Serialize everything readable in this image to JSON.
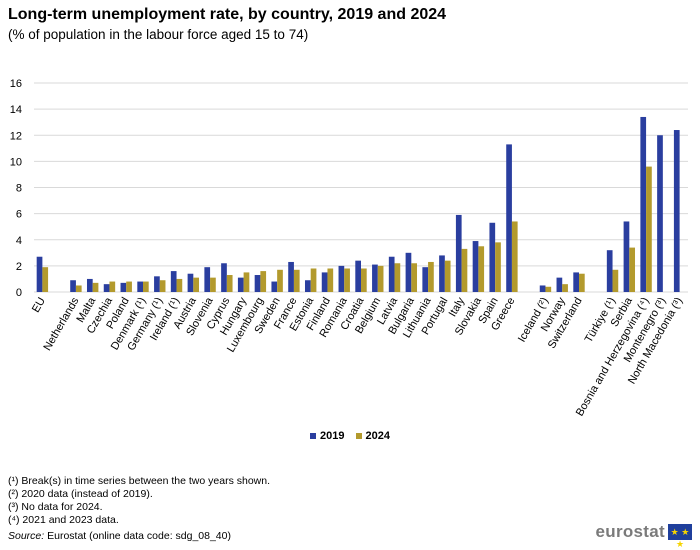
{
  "title": "Long-term unemployment rate, by country, 2019 and 2024",
  "subtitle": "(% of population in the labour force aged 15 to 74)",
  "colors": {
    "2019": "#2a3e9f",
    "2024": "#b39a2d",
    "grid": "#d9d9d9"
  },
  "chart_data": {
    "type": "bar",
    "ylim": [
      0,
      16
    ],
    "yticks": [
      0,
      2,
      4,
      6,
      8,
      10,
      12,
      14,
      16
    ],
    "grid": true,
    "legend_position": "bottom",
    "categories": [
      "EU",
      "Netherlands",
      "Malta",
      "Czechia",
      "Poland",
      "Denmark (¹)",
      "Germany (¹)",
      "Ireland (¹)",
      "Austria",
      "Slovenia",
      "Cyprus",
      "Hungary",
      "Luxembourg",
      "Sweden",
      "France",
      "Estonia",
      "Finland",
      "Romania",
      "Croatia",
      "Belgium",
      "Latvia",
      "Bulgaria",
      "Lithuania",
      "Portugal",
      "Italy",
      "Slovakia",
      "Spain",
      "Greece",
      "Iceland (²)",
      "Norway",
      "Switzerland",
      "Türkiye (¹)",
      "Serbia",
      "Bosnia and Herzegovina (⁴)",
      "Montenegro (³)",
      "North Macedonia (³)"
    ],
    "groups": [
      1,
      27,
      3,
      5
    ],
    "series": [
      {
        "name": "2019",
        "values": [
          2.7,
          0.9,
          1.0,
          0.6,
          0.7,
          0.8,
          1.2,
          1.6,
          1.4,
          1.9,
          2.2,
          1.1,
          1.3,
          0.8,
          2.3,
          0.9,
          1.5,
          2.0,
          2.4,
          2.1,
          2.7,
          3.0,
          1.9,
          2.8,
          5.9,
          3.9,
          5.3,
          11.3,
          0.5,
          1.1,
          1.5,
          3.2,
          5.4,
          13.4,
          12.0,
          12.4
        ]
      },
      {
        "name": "2024",
        "values": [
          1.9,
          0.5,
          0.7,
          0.8,
          0.8,
          0.8,
          0.9,
          1.0,
          1.1,
          1.1,
          1.3,
          1.5,
          1.6,
          1.7,
          1.7,
          1.8,
          1.8,
          1.8,
          1.8,
          2.0,
          2.2,
          2.2,
          2.3,
          2.4,
          3.3,
          3.5,
          3.8,
          5.4,
          0.4,
          0.6,
          1.4,
          1.7,
          3.4,
          9.6,
          null,
          null
        ]
      }
    ]
  },
  "notes": [
    "(¹) Break(s) in time series between the two years shown.",
    "(²) 2020 data (instead of 2019).",
    "(³) No data for 2024.",
    "(⁴) 2021 and 2023 data."
  ],
  "source_label": "Source:",
  "source_text": "Eurostat (online data code: sdg_08_40)",
  "logo": {
    "text": "eurostat",
    "icon": "eu-flag-icon"
  }
}
